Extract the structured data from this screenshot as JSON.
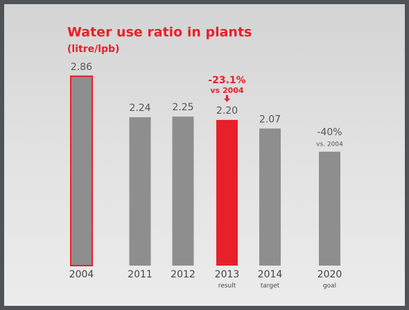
{
  "chart_data": {
    "type": "bar",
    "title": "Water use ratio in plants",
    "subtitle": "(litre/lpb)",
    "categories": [
      "2004",
      "2011",
      "2012",
      "2013",
      "2014",
      "2020"
    ],
    "sublabels": [
      null,
      null,
      null,
      "result",
      "target",
      "goal"
    ],
    "values": [
      2.86,
      2.24,
      2.25,
      2.2,
      2.07,
      1.72
    ],
    "value_labels": [
      "2.86",
      "2.24",
      "2.25",
      "2.20",
      "2.07",
      null
    ],
    "colors": [
      "#8e8e8e",
      "#8e8e8e",
      "#8e8e8e",
      "#e8202a",
      "#8e8e8e",
      "#8e8e8e"
    ],
    "edge_colors": [
      "#e8202a",
      "none",
      "none",
      "none",
      "none",
      "none"
    ],
    "annotations": [
      {
        "text": "-23.1%",
        "note": "vs 2004"
      },
      {
        "text": "-40%",
        "note": "vs. 2004"
      }
    ],
    "ylim": [
      0,
      3
    ]
  }
}
